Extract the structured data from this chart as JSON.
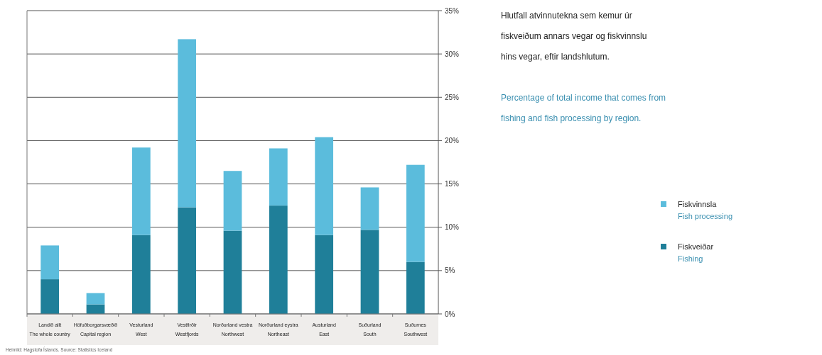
{
  "chart_data": {
    "type": "bar",
    "stacked": true,
    "title": "Hlutfall atvinnutekna sem kemur úr fiskveiðum annars vegar og fiskvinnslu hins vegar, eftir landshlutum.",
    "subtitle": "Percentage of total income that comes from fishing and fish processing by region.",
    "categories": [
      "Landið allt\nThe whole country",
      "Höfuðborgarsvæðið\nCapital region",
      "Vesturland\nWest",
      "Vestfirðir\nWestfjords",
      "Norðurland vestra\nNorthwest",
      "Norðurland eystra\nNortheast",
      "Austurland\nEast",
      "Suðurland\nSouth",
      "Suðurnes\nSouthwest"
    ],
    "series": [
      {
        "name": "Fiskveiðar\nFishing",
        "color": "#1f7f99",
        "values": [
          4.0,
          1.1,
          9.1,
          12.3,
          9.6,
          12.5,
          9.1,
          9.7,
          6.0
        ]
      },
      {
        "name": "Fiskvinnsla\nFish processing",
        "color": "#5bbcdc",
        "values": [
          3.9,
          1.3,
          10.1,
          19.4,
          6.9,
          6.6,
          11.3,
          4.9,
          11.2
        ]
      }
    ],
    "ylim": [
      0,
      35
    ],
    "yticks": [
      {
        "value": 0,
        "label": "0%"
      },
      {
        "value": 5,
        "label": "5%"
      },
      {
        "value": 10,
        "label": "10%"
      },
      {
        "value": 15,
        "label": "15%"
      },
      {
        "value": 20,
        "label": "20%"
      },
      {
        "value": 25,
        "label": "25%"
      },
      {
        "value": 30,
        "label": "30%"
      },
      {
        "value": 35,
        "label": "35%"
      }
    ],
    "grid": "y",
    "legend": "right",
    "annotations": [
      "Heimild: Hagstofa Íslands. Source: Statistics Iceland"
    ]
  }
}
